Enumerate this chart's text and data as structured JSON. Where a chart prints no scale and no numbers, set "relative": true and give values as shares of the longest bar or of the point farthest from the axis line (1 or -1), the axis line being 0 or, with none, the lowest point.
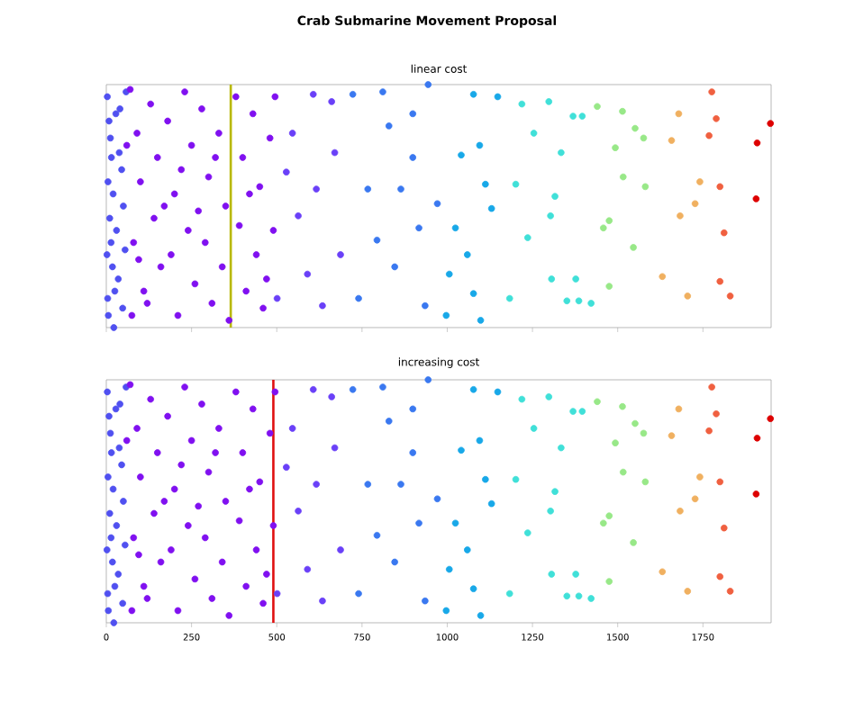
{
  "chart_data": [
    {
      "type": "scatter",
      "title": "Crab Submarine Movement Proposal",
      "subtitle": "linear cost",
      "relative": true,
      "tick_labels": false,
      "xlim": [
        0,
        1950
      ],
      "xticks": [
        0,
        250,
        500,
        750,
        1000,
        1250,
        1500,
        1750
      ],
      "ref_lines": [
        {
          "axis": "x",
          "value": 365,
          "color": "#b8b800"
        }
      ],
      "series": [
        {
          "color": "#5050f0",
          "x": [
            3,
            8,
            15,
            5,
            20,
            10,
            30,
            2,
            18,
            25,
            6,
            40,
            45,
            35,
            50,
            12,
            28,
            55,
            4,
            22,
            48,
            38,
            14,
            58
          ],
          "values": [
            0.95,
            0.85,
            0.7,
            0.6,
            0.55,
            0.45,
            0.4,
            0.3,
            0.25,
            0.15,
            0.05,
            0.9,
            0.65,
            0.2,
            0.5,
            0.78,
            0.88,
            0.32,
            0.12,
            0,
            0.08,
            0.72,
            0.35,
            0.97
          ]
        },
        {
          "color": "#8010f0",
          "x": [
            70,
            90,
            100,
            80,
            110,
            75,
            130,
            150,
            140,
            160,
            120,
            180,
            200,
            190,
            210,
            230,
            250,
            240,
            260,
            280,
            300,
            290,
            310,
            330,
            350,
            340,
            360,
            380,
            400,
            390,
            410,
            430,
            450,
            440,
            460,
            480,
            490,
            470,
            170,
            270,
            320,
            420,
            220,
            95,
            60,
            495
          ],
          "values": [
            0.98,
            0.8,
            0.6,
            0.35,
            0.15,
            0.05,
            0.92,
            0.7,
            0.45,
            0.25,
            0.1,
            0.85,
            0.55,
            0.3,
            0.05,
            0.97,
            0.75,
            0.4,
            0.18,
            0.9,
            0.62,
            0.35,
            0.1,
            0.8,
            0.5,
            0.25,
            0.03,
            0.95,
            0.7,
            0.42,
            0.15,
            0.88,
            0.58,
            0.3,
            0.08,
            0.78,
            0.4,
            0.2,
            0.5,
            0.48,
            0.7,
            0.55,
            0.65,
            0.28,
            0.75,
            0.95
          ]
        },
        {
          "color": "#6a40f8",
          "x": [
            670,
            607,
            563,
            634,
            546,
            687,
            590,
            616,
            661,
            501,
            528
          ],
          "values": [
            0.72,
            0.96,
            0.46,
            0.09,
            0.8,
            0.3,
            0.22,
            0.57,
            0.93,
            0.12,
            0.64
          ]
        },
        {
          "color": "#3a78f0",
          "x": [
            829,
            811,
            864,
            794,
            846,
            917,
            935,
            899,
            767,
            740,
            971,
            723,
            944,
            899
          ],
          "values": [
            0.83,
            0.97,
            0.57,
            0.36,
            0.25,
            0.41,
            0.09,
            0.7,
            0.57,
            0.12,
            0.51,
            0.96,
            1,
            0.88
          ]
        },
        {
          "color": "#18a8e8",
          "x": [
            1077,
            1148,
            1095,
            1041,
            1112,
            1024,
            1059,
            997,
            1098,
            1006,
            1130,
            1077
          ],
          "values": [
            0.96,
            0.95,
            0.75,
            0.71,
            0.59,
            0.41,
            0.3,
            0.05,
            0.03,
            0.22,
            0.49,
            0.14
          ]
        },
        {
          "color": "#40e0d8",
          "x": [
            1369,
            1396,
            1298,
            1334,
            1316,
            1303,
            1351,
            1386,
            1422,
            1306,
            1377,
            1254,
            1201,
            1236,
            1183,
            1219
          ],
          "values": [
            0.87,
            0.87,
            0.93,
            0.72,
            0.54,
            0.46,
            0.11,
            0.11,
            0.1,
            0.2,
            0.2,
            0.8,
            0.59,
            0.37,
            0.12,
            0.92
          ]
        },
        {
          "color": "#98e888",
          "x": [
            1514,
            1551,
            1576,
            1581,
            1516,
            1546,
            1475,
            1475,
            1458,
            1493,
            1440
          ],
          "values": [
            0.89,
            0.82,
            0.78,
            0.58,
            0.62,
            0.33,
            0.44,
            0.17,
            0.41,
            0.74,
            0.91
          ]
        },
        {
          "color": "#f0b060",
          "x": [
            1741,
            1727,
            1683,
            1705,
            1679,
            1658,
            1631
          ],
          "values": [
            0.6,
            0.51,
            0.46,
            0.13,
            0.88,
            0.77,
            0.21
          ]
        },
        {
          "color": "#f06040",
          "x": [
            1812,
            1830,
            1800,
            1776,
            1789,
            1768,
            1800
          ],
          "values": [
            0.39,
            0.13,
            0.19,
            0.97,
            0.86,
            0.79,
            0.58
          ]
        },
        {
          "color": "#dd0000",
          "x": [
            1948,
            1909,
            1906
          ],
          "values": [
            0.84,
            0.76,
            0.53
          ]
        }
      ]
    },
    {
      "type": "scatter",
      "title": "increasing cost",
      "relative": true,
      "tick_labels": "x",
      "xlim": [
        0,
        1950
      ],
      "xticks": [
        0,
        250,
        500,
        750,
        1000,
        1250,
        1500,
        1750
      ],
      "ref_lines": [
        {
          "axis": "x",
          "value": 490,
          "color": "#e01010"
        }
      ],
      "series": [
        {
          "color": "#5050f0",
          "x": [
            3,
            8,
            15,
            5,
            20,
            10,
            30,
            2,
            18,
            25,
            6,
            40,
            45,
            35,
            50,
            12,
            28,
            55,
            4,
            22,
            48,
            38,
            14,
            58
          ],
          "values": [
            0.95,
            0.85,
            0.7,
            0.6,
            0.55,
            0.45,
            0.4,
            0.3,
            0.25,
            0.15,
            0.05,
            0.9,
            0.65,
            0.2,
            0.5,
            0.78,
            0.88,
            0.32,
            0.12,
            0,
            0.08,
            0.72,
            0.35,
            0.97
          ]
        },
        {
          "color": "#8010f0",
          "x": [
            70,
            90,
            100,
            80,
            110,
            75,
            130,
            150,
            140,
            160,
            120,
            180,
            200,
            190,
            210,
            230,
            250,
            240,
            260,
            280,
            300,
            290,
            310,
            330,
            350,
            340,
            360,
            380,
            400,
            390,
            410,
            430,
            450,
            440,
            460,
            480,
            490,
            470,
            170,
            270,
            320,
            420,
            220,
            95,
            60,
            495
          ],
          "values": [
            0.98,
            0.8,
            0.6,
            0.35,
            0.15,
            0.05,
            0.92,
            0.7,
            0.45,
            0.25,
            0.1,
            0.85,
            0.55,
            0.3,
            0.05,
            0.97,
            0.75,
            0.4,
            0.18,
            0.9,
            0.62,
            0.35,
            0.1,
            0.8,
            0.5,
            0.25,
            0.03,
            0.95,
            0.7,
            0.42,
            0.15,
            0.88,
            0.58,
            0.3,
            0.08,
            0.78,
            0.4,
            0.2,
            0.5,
            0.48,
            0.7,
            0.55,
            0.65,
            0.28,
            0.75,
            0.95
          ]
        },
        {
          "color": "#6a40f8",
          "x": [
            670,
            607,
            563,
            634,
            546,
            687,
            590,
            616,
            661,
            501,
            528
          ],
          "values": [
            0.72,
            0.96,
            0.46,
            0.09,
            0.8,
            0.3,
            0.22,
            0.57,
            0.93,
            0.12,
            0.64
          ]
        },
        {
          "color": "#3a78f0",
          "x": [
            829,
            811,
            864,
            794,
            846,
            917,
            935,
            899,
            767,
            740,
            971,
            723,
            944,
            899
          ],
          "values": [
            0.83,
            0.97,
            0.57,
            0.36,
            0.25,
            0.41,
            0.09,
            0.7,
            0.57,
            0.12,
            0.51,
            0.96,
            1,
            0.88
          ]
        },
        {
          "color": "#18a8e8",
          "x": [
            1077,
            1148,
            1095,
            1041,
            1112,
            1024,
            1059,
            997,
            1098,
            1006,
            1130,
            1077
          ],
          "values": [
            0.96,
            0.95,
            0.75,
            0.71,
            0.59,
            0.41,
            0.3,
            0.05,
            0.03,
            0.22,
            0.49,
            0.14
          ]
        },
        {
          "color": "#40e0d8",
          "x": [
            1369,
            1396,
            1298,
            1334,
            1316,
            1303,
            1351,
            1386,
            1422,
            1306,
            1377,
            1254,
            1201,
            1236,
            1183,
            1219
          ],
          "values": [
            0.87,
            0.87,
            0.93,
            0.72,
            0.54,
            0.46,
            0.11,
            0.11,
            0.1,
            0.2,
            0.2,
            0.8,
            0.59,
            0.37,
            0.12,
            0.92
          ]
        },
        {
          "color": "#98e888",
          "x": [
            1514,
            1551,
            1576,
            1581,
            1516,
            1546,
            1475,
            1475,
            1458,
            1493,
            1440
          ],
          "values": [
            0.89,
            0.82,
            0.78,
            0.58,
            0.62,
            0.33,
            0.44,
            0.17,
            0.41,
            0.74,
            0.91
          ]
        },
        {
          "color": "#f0b060",
          "x": [
            1741,
            1727,
            1683,
            1705,
            1679,
            1658,
            1631
          ],
          "values": [
            0.6,
            0.51,
            0.46,
            0.13,
            0.88,
            0.77,
            0.21
          ]
        },
        {
          "color": "#f06040",
          "x": [
            1812,
            1830,
            1800,
            1776,
            1789,
            1768,
            1800
          ],
          "values": [
            0.39,
            0.13,
            0.19,
            0.97,
            0.86,
            0.79,
            0.58
          ]
        },
        {
          "color": "#dd0000",
          "x": [
            1948,
            1909,
            1906
          ],
          "values": [
            0.84,
            0.76,
            0.53
          ]
        }
      ]
    }
  ]
}
